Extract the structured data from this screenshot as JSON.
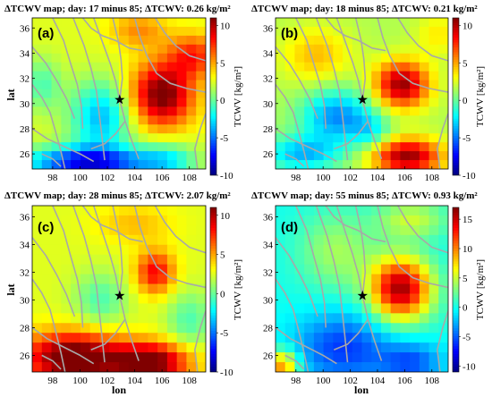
{
  "chart_data": [
    {
      "type": "heatmap",
      "panel_label": "(a)",
      "title": "ΔTCWV map; day: 17 minus 85; ΔTCWV: 0.26 kg/m²",
      "xlabel": "",
      "ylabel": "lat",
      "colorbar_label": "TCWV [kg/m²]",
      "colorbar_ticks": [
        "-10",
        "-5",
        "0",
        "5",
        "10"
      ],
      "clim": [
        -10,
        11
      ],
      "xlim": [
        96.5,
        109.2
      ],
      "ylim": [
        24.8,
        36.8
      ],
      "xticks": [
        "98",
        "100",
        "102",
        "104",
        "106",
        "108"
      ],
      "yticks": [
        "26",
        "28",
        "30",
        "32",
        "34",
        "36"
      ],
      "epicenter": {
        "lon": 102.9,
        "lat": 30.3
      },
      "field": {
        "base": 2.5,
        "blobs": [
          {
            "lon": 106.0,
            "lat": 30.7,
            "sx": 1.6,
            "sy": 1.8,
            "amp": 9
          },
          {
            "lon": 108.3,
            "lat": 33.8,
            "sx": 1.3,
            "sy": 1.2,
            "amp": 5
          },
          {
            "lon": 104.3,
            "lat": 35.8,
            "sx": 1.5,
            "sy": 1.0,
            "amp": 3
          },
          {
            "lon": 101.5,
            "lat": 28.9,
            "sx": 1.6,
            "sy": 2.0,
            "amp": -6
          },
          {
            "lon": 100.5,
            "lat": 25.3,
            "sx": 3.2,
            "sy": 0.9,
            "amp": -10
          },
          {
            "lon": 106.3,
            "lat": 25.5,
            "sx": 1.6,
            "sy": 1.0,
            "amp": -4
          },
          {
            "lon": 97.2,
            "lat": 31.5,
            "sx": 1.0,
            "sy": 1.5,
            "amp": -3
          }
        ]
      }
    },
    {
      "type": "heatmap",
      "panel_label": "(b)",
      "title": "ΔTCWV map; day: 18 minus 85; ΔTCWV: 0.21 kg/m²",
      "xlabel": "",
      "ylabel": "",
      "colorbar_label": "TCWV [kg/m²]",
      "colorbar_ticks": [
        "-10",
        "-5",
        "0",
        "5",
        "10"
      ],
      "clim": [
        -10,
        11
      ],
      "xlim": [
        96.5,
        109.2
      ],
      "ylim": [
        24.8,
        36.8
      ],
      "xticks": [
        "98",
        "100",
        "102",
        "104",
        "106",
        "108"
      ],
      "yticks": [
        "26",
        "28",
        "30",
        "32",
        "34",
        "36"
      ],
      "epicenter": {
        "lon": 102.9,
        "lat": 30.3
      },
      "field": {
        "base": 1.5,
        "blobs": [
          {
            "lon": 105.8,
            "lat": 31.5,
            "sx": 1.4,
            "sy": 1.3,
            "amp": 9
          },
          {
            "lon": 106.2,
            "lat": 25.8,
            "sx": 1.8,
            "sy": 1.0,
            "amp": 9
          },
          {
            "lon": 99.5,
            "lat": 33.8,
            "sx": 1.8,
            "sy": 1.6,
            "amp": 3
          },
          {
            "lon": 101.0,
            "lat": 29.0,
            "sx": 1.8,
            "sy": 1.5,
            "amp": -6
          },
          {
            "lon": 98.5,
            "lat": 26.0,
            "sx": 2.0,
            "sy": 1.0,
            "amp": -5
          },
          {
            "lon": 103.5,
            "lat": 27.8,
            "sx": 1.0,
            "sy": 1.0,
            "amp": -3
          },
          {
            "lon": 108.5,
            "lat": 35.5,
            "sx": 1.2,
            "sy": 1.2,
            "amp": 2
          }
        ]
      }
    },
    {
      "type": "heatmap",
      "panel_label": "(c)",
      "title": "ΔTCWV map; day: 28 minus 85; ΔTCWV: 2.07 kg/m²",
      "xlabel": "lon",
      "ylabel": "lat",
      "colorbar_label": "TCWV [kg/m²]",
      "colorbar_ticks": [
        "-10",
        "-5",
        "0",
        "5",
        "10"
      ],
      "clim": [
        -10,
        11
      ],
      "xlim": [
        96.5,
        109.2
      ],
      "ylim": [
        24.8,
        36.8
      ],
      "xticks": [
        "98",
        "100",
        "102",
        "104",
        "106",
        "108"
      ],
      "yticks": [
        "26",
        "28",
        "30",
        "32",
        "34",
        "36"
      ],
      "epicenter": {
        "lon": 102.9,
        "lat": 30.3
      },
      "field": {
        "base": 2.5,
        "blobs": [
          {
            "lon": 99.5,
            "lat": 25.8,
            "sx": 2.6,
            "sy": 1.3,
            "amp": 10
          },
          {
            "lon": 105.2,
            "lat": 25.5,
            "sx": 2.0,
            "sy": 1.0,
            "amp": 9
          },
          {
            "lon": 105.5,
            "lat": 32.0,
            "sx": 1.0,
            "sy": 1.1,
            "amp": 6
          },
          {
            "lon": 101.5,
            "lat": 30.0,
            "sx": 1.4,
            "sy": 1.4,
            "amp": -3
          },
          {
            "lon": 108.0,
            "lat": 28.5,
            "sx": 1.2,
            "sy": 1.5,
            "amp": -3
          },
          {
            "lon": 104.0,
            "lat": 35.5,
            "sx": 2.0,
            "sy": 1.0,
            "amp": 2
          }
        ]
      }
    },
    {
      "type": "heatmap",
      "panel_label": "(d)",
      "title": "ΔTCWV map; day: 55 minus 85; ΔTCWV: 0.93 kg/m²",
      "xlabel": "lon",
      "ylabel": "",
      "colorbar_label": "TCWV [kg/m²]",
      "colorbar_ticks": [
        "-10",
        "-5",
        "0",
        "5",
        "10",
        "15"
      ],
      "clim": [
        -11,
        17
      ],
      "xlim": [
        96.5,
        109.2
      ],
      "ylim": [
        24.8,
        36.8
      ],
      "xticks": [
        "98",
        "100",
        "102",
        "104",
        "106",
        "108"
      ],
      "yticks": [
        "26",
        "28",
        "30",
        "32",
        "34",
        "36"
      ],
      "epicenter": {
        "lon": 102.9,
        "lat": 30.3
      },
      "field": {
        "base": 0,
        "blobs": [
          {
            "lon": 105.7,
            "lat": 30.8,
            "sx": 1.6,
            "sy": 1.6,
            "amp": 16
          },
          {
            "lon": 101.0,
            "lat": 33.5,
            "sx": 2.0,
            "sy": 2.0,
            "amp": 4
          },
          {
            "lon": 106.5,
            "lat": 35.8,
            "sx": 1.8,
            "sy": 1.0,
            "amp": 5
          },
          {
            "lon": 101.5,
            "lat": 26.5,
            "sx": 2.5,
            "sy": 1.8,
            "amp": -6
          },
          {
            "lon": 106.5,
            "lat": 25.5,
            "sx": 1.6,
            "sy": 1.0,
            "amp": -5
          },
          {
            "lon": 97.0,
            "lat": 25.2,
            "sx": 0.8,
            "sy": 0.8,
            "amp": 10
          }
        ]
      }
    }
  ]
}
